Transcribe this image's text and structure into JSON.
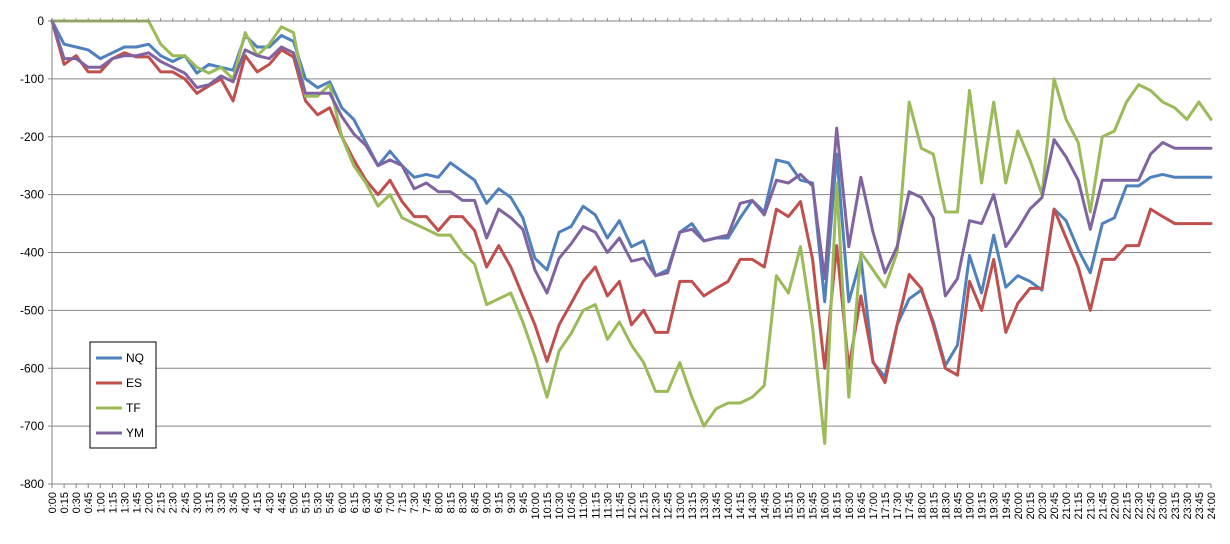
{
  "chart_data": {
    "type": "line",
    "title": "",
    "xlabel": "",
    "ylabel": "",
    "ylim": [
      -800,
      0
    ],
    "yticks": [
      0,
      -100,
      -200,
      -300,
      -400,
      -500,
      -600,
      -700,
      -800
    ],
    "grid": "horizontal",
    "legend_position": "lower-left",
    "x": [
      "0:00",
      "0:15",
      "0:30",
      "0:45",
      "1:00",
      "1:15",
      "1:30",
      "1:45",
      "2:00",
      "2:15",
      "2:30",
      "2:45",
      "3:00",
      "3:15",
      "3:30",
      "3:45",
      "4:00",
      "4:15",
      "4:30",
      "4:45",
      "5:00",
      "5:15",
      "5:30",
      "5:45",
      "6:00",
      "6:15",
      "6:30",
      "6:45",
      "7:00",
      "7:15",
      "7:30",
      "7:45",
      "8:00",
      "8:15",
      "8:30",
      "8:45",
      "9:00",
      "9:15",
      "9:30",
      "9:45",
      "10:00",
      "10:15",
      "10:30",
      "10:45",
      "11:00",
      "11:15",
      "11:30",
      "11:45",
      "12:00",
      "12:15",
      "12:30",
      "12:45",
      "13:00",
      "13:15",
      "13:30",
      "13:45",
      "14:00",
      "14:15",
      "14:30",
      "14:45",
      "15:00",
      "15:15",
      "15:30",
      "15:45",
      "16:00",
      "16:15",
      "16:30",
      "16:45",
      "17:00",
      "17:15",
      "17:30",
      "17:45",
      "18:00",
      "18:15",
      "18:30",
      "18:45",
      "19:00",
      "19:15",
      "19:30",
      "19:45",
      "20:00",
      "20:15",
      "20:30",
      "20:45",
      "21:00",
      "21:15",
      "21:30",
      "21:45",
      "22:00",
      "22:15",
      "22:30",
      "22:45",
      "23:00",
      "23:15",
      "23:30",
      "23:45",
      "24:00"
    ],
    "series": [
      {
        "name": "NQ",
        "color": "#4F81BD",
        "values": [
          0,
          -40,
          -45,
          -50,
          -65,
          -55,
          -45,
          -45,
          -40,
          -60,
          -70,
          -60,
          -90,
          -75,
          -80,
          -85,
          -25,
          -45,
          -45,
          -25,
          -35,
          -100,
          -115,
          -105,
          -150,
          -170,
          -210,
          -250,
          -225,
          -250,
          -270,
          -265,
          -270,
          -245,
          -260,
          -275,
          -315,
          -290,
          -305,
          -340,
          -410,
          -430,
          -365,
          -355,
          -320,
          -335,
          -375,
          -345,
          -390,
          -380,
          -440,
          -430,
          -365,
          -350,
          -380,
          -375,
          -375,
          -340,
          -310,
          -330,
          -240,
          -245,
          -275,
          -280,
          -485,
          -230,
          -485,
          -410,
          -590,
          -615,
          -525,
          -480,
          -465,
          -520,
          -595,
          -560,
          -405,
          -470,
          -370,
          -460,
          -440,
          -450,
          -465,
          -325,
          -345,
          -395,
          -435,
          -350,
          -340,
          -285,
          -285,
          -270,
          -265,
          -270,
          -270,
          -270,
          -270
        ]
      },
      {
        "name": "ES",
        "color": "#C0504D",
        "values": [
          0,
          -75,
          -60,
          -88,
          -88,
          -65,
          -55,
          -62,
          -62,
          -88,
          -88,
          -100,
          -125,
          -112,
          -100,
          -138,
          -60,
          -88,
          -75,
          -50,
          -62,
          -138,
          -162,
          -150,
          -200,
          -240,
          -275,
          -300,
          -275,
          -312,
          -338,
          -338,
          -362,
          -338,
          -338,
          -362,
          -425,
          -388,
          -425,
          -475,
          -525,
          -588,
          -525,
          -488,
          -450,
          -425,
          -475,
          -450,
          -525,
          -500,
          -538,
          -538,
          -450,
          -450,
          -475,
          -462,
          -450,
          -412,
          -412,
          -425,
          -325,
          -338,
          -312,
          -412,
          -600,
          -388,
          -600,
          -475,
          -588,
          -625,
          -525,
          -438,
          -462,
          -525,
          -600,
          -612,
          -450,
          -500,
          -412,
          -538,
          -488,
          -462,
          -462,
          -325,
          -375,
          -425,
          -500,
          -412,
          -412,
          -388,
          -388,
          -325,
          -338,
          -350,
          -350,
          -350,
          -350
        ]
      },
      {
        "name": "TF",
        "color": "#9BBB59",
        "values": [
          0,
          0,
          0,
          0,
          0,
          0,
          0,
          0,
          0,
          -40,
          -60,
          -60,
          -80,
          -90,
          -80,
          -100,
          -20,
          -60,
          -40,
          -10,
          -20,
          -130,
          -130,
          -110,
          -200,
          -250,
          -280,
          -320,
          -300,
          -340,
          -350,
          -360,
          -370,
          -370,
          -400,
          -420,
          -490,
          -480,
          -470,
          -520,
          -580,
          -650,
          -570,
          -540,
          -500,
          -490,
          -550,
          -520,
          -560,
          -590,
          -640,
          -640,
          -590,
          -650,
          -700,
          -670,
          -660,
          -660,
          -650,
          -630,
          -440,
          -470,
          -390,
          -530,
          -730,
          -280,
          -650,
          -400,
          -430,
          -460,
          -400,
          -140,
          -220,
          -230,
          -330,
          -330,
          -120,
          -280,
          -140,
          -280,
          -190,
          -240,
          -300,
          -100,
          -170,
          -210,
          -330,
          -200,
          -190,
          -140,
          -110,
          -120,
          -140,
          -150,
          -170,
          -140,
          -170
        ]
      },
      {
        "name": "YM",
        "color": "#8064A2",
        "values": [
          0,
          -65,
          -65,
          -80,
          -80,
          -65,
          -60,
          -60,
          -55,
          -70,
          -80,
          -90,
          -115,
          -110,
          -95,
          -105,
          -50,
          -60,
          -65,
          -45,
          -55,
          -125,
          -125,
          -125,
          -165,
          -195,
          -215,
          -250,
          -240,
          -250,
          -290,
          -280,
          -295,
          -295,
          -310,
          -310,
          -375,
          -325,
          -340,
          -360,
          -430,
          -470,
          -410,
          -385,
          -355,
          -365,
          -400,
          -375,
          -415,
          -410,
          -440,
          -435,
          -365,
          -360,
          -380,
          -375,
          -370,
          -315,
          -310,
          -335,
          -275,
          -280,
          -265,
          -285,
          -445,
          -185,
          -390,
          -270,
          -365,
          -435,
          -390,
          -295,
          -305,
          -340,
          -475,
          -445,
          -345,
          -350,
          -300,
          -390,
          -360,
          -325,
          -305,
          -205,
          -235,
          -275,
          -360,
          -275,
          -275,
          -275,
          -275,
          -230,
          -210,
          -220,
          -220,
          -220,
          -220
        ]
      }
    ]
  }
}
